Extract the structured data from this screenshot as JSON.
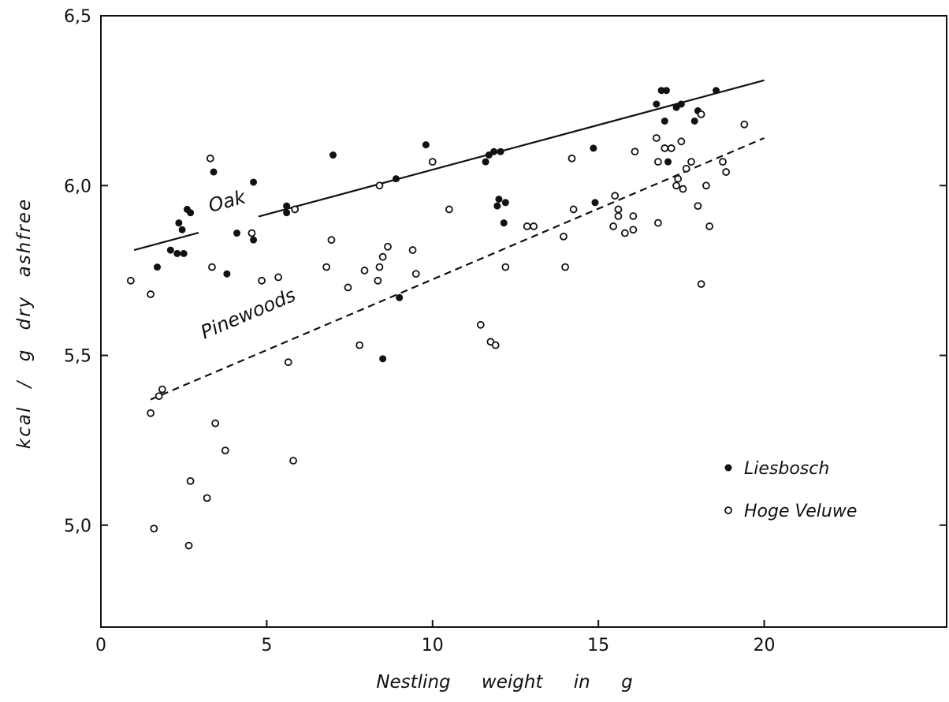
{
  "chart_data": {
    "type": "scatter",
    "title": "",
    "xlabel": "Nestling weight in g",
    "ylabel": "kcal / g dry ashfree",
    "xlim": [
      0,
      25.5
    ],
    "ylim": [
      4.7,
      6.5
    ],
    "x_ticks": [
      0,
      5,
      10,
      15,
      20
    ],
    "x_tick_labels": [
      "0",
      "5",
      "10",
      "15",
      "20"
    ],
    "y_ticks": [
      5.0,
      5.5,
      6.0,
      6.5
    ],
    "y_tick_labels": [
      "5,0",
      "5,5",
      "6,0",
      "6,5"
    ],
    "grid": false,
    "legend_position": "lower-right",
    "series": [
      {
        "name": "Liesbosch",
        "marker": "filled-circle",
        "color": "#111111",
        "points": [
          [
            1.7,
            5.76
          ],
          [
            2.1,
            5.81
          ],
          [
            2.3,
            5.8
          ],
          [
            2.35,
            5.89
          ],
          [
            2.45,
            5.87
          ],
          [
            2.5,
            5.8
          ],
          [
            2.6,
            5.93
          ],
          [
            2.7,
            5.92
          ],
          [
            3.4,
            6.04
          ],
          [
            3.8,
            5.74
          ],
          [
            4.1,
            5.86
          ],
          [
            4.6,
            6.01
          ],
          [
            4.6,
            5.84
          ],
          [
            5.6,
            5.94
          ],
          [
            5.6,
            5.92
          ],
          [
            7.0,
            6.09
          ],
          [
            8.5,
            5.49
          ],
          [
            8.9,
            6.02
          ],
          [
            9.0,
            5.67
          ],
          [
            9.8,
            6.12
          ],
          [
            11.6,
            6.07
          ],
          [
            11.7,
            6.09
          ],
          [
            11.85,
            6.1
          ],
          [
            11.95,
            5.94
          ],
          [
            12.0,
            5.96
          ],
          [
            12.05,
            6.1
          ],
          [
            12.15,
            5.89
          ],
          [
            12.2,
            5.95
          ],
          [
            14.85,
            6.11
          ],
          [
            14.9,
            5.95
          ],
          [
            16.75,
            6.24
          ],
          [
            16.9,
            6.28
          ],
          [
            17.0,
            6.19
          ],
          [
            17.05,
            6.28
          ],
          [
            17.1,
            6.07
          ],
          [
            17.35,
            6.23
          ],
          [
            17.5,
            6.24
          ],
          [
            17.9,
            6.19
          ],
          [
            18.0,
            6.22
          ],
          [
            18.55,
            6.28
          ]
        ]
      },
      {
        "name": "Hoge Veluwe",
        "marker": "open-circle",
        "color": "#111111",
        "points": [
          [
            0.9,
            5.72
          ],
          [
            1.5,
            5.68
          ],
          [
            1.5,
            5.33
          ],
          [
            1.6,
            4.99
          ],
          [
            1.75,
            5.38
          ],
          [
            1.85,
            5.4
          ],
          [
            2.65,
            4.94
          ],
          [
            2.7,
            5.13
          ],
          [
            3.2,
            5.08
          ],
          [
            3.3,
            6.08
          ],
          [
            3.35,
            5.76
          ],
          [
            3.45,
            5.3
          ],
          [
            3.75,
            5.22
          ],
          [
            4.55,
            5.86
          ],
          [
            4.85,
            5.72
          ],
          [
            5.35,
            5.73
          ],
          [
            5.65,
            5.48
          ],
          [
            5.8,
            5.19
          ],
          [
            5.85,
            5.93
          ],
          [
            6.8,
            5.76
          ],
          [
            6.95,
            5.84
          ],
          [
            7.45,
            5.7
          ],
          [
            7.8,
            5.53
          ],
          [
            7.95,
            5.75
          ],
          [
            8.35,
            5.72
          ],
          [
            8.4,
            5.76
          ],
          [
            8.4,
            6.0
          ],
          [
            8.5,
            5.79
          ],
          [
            8.65,
            5.82
          ],
          [
            9.4,
            5.81
          ],
          [
            9.5,
            5.74
          ],
          [
            10.0,
            6.07
          ],
          [
            10.5,
            5.93
          ],
          [
            11.45,
            5.59
          ],
          [
            11.75,
            5.54
          ],
          [
            11.9,
            5.53
          ],
          [
            12.2,
            5.76
          ],
          [
            12.85,
            5.88
          ],
          [
            13.05,
            5.88
          ],
          [
            13.95,
            5.85
          ],
          [
            14.0,
            5.76
          ],
          [
            14.2,
            6.08
          ],
          [
            14.25,
            5.93
          ],
          [
            15.45,
            5.88
          ],
          [
            15.5,
            5.97
          ],
          [
            15.6,
            5.93
          ],
          [
            15.6,
            5.91
          ],
          [
            15.8,
            5.86
          ],
          [
            16.05,
            5.87
          ],
          [
            16.05,
            5.91
          ],
          [
            16.1,
            6.1
          ],
          [
            16.75,
            6.14
          ],
          [
            16.8,
            6.07
          ],
          [
            16.8,
            5.89
          ],
          [
            17.0,
            6.11
          ],
          [
            17.2,
            6.11
          ],
          [
            17.35,
            6.0
          ],
          [
            17.4,
            6.02
          ],
          [
            17.5,
            6.13
          ],
          [
            17.55,
            5.99
          ],
          [
            17.65,
            6.05
          ],
          [
            17.8,
            6.07
          ],
          [
            18.0,
            5.94
          ],
          [
            18.1,
            6.21
          ],
          [
            18.1,
            5.71
          ],
          [
            18.25,
            6.0
          ],
          [
            18.35,
            5.88
          ],
          [
            18.75,
            6.07
          ],
          [
            18.85,
            6.04
          ],
          [
            19.4,
            6.18
          ]
        ]
      }
    ],
    "fit_lines": [
      {
        "label": "Oak",
        "style": "solid",
        "from": [
          1.0,
          5.81
        ],
        "to": [
          20.0,
          6.31
        ]
      },
      {
        "label": "Pinewoods",
        "style": "dashed",
        "from": [
          1.5,
          5.37
        ],
        "to": [
          20.0,
          6.14
        ]
      }
    ],
    "legend": [
      {
        "label": "Liesbosch",
        "marker": "filled-circle"
      },
      {
        "label": "Hoge Veluwe",
        "marker": "open-circle"
      }
    ]
  }
}
